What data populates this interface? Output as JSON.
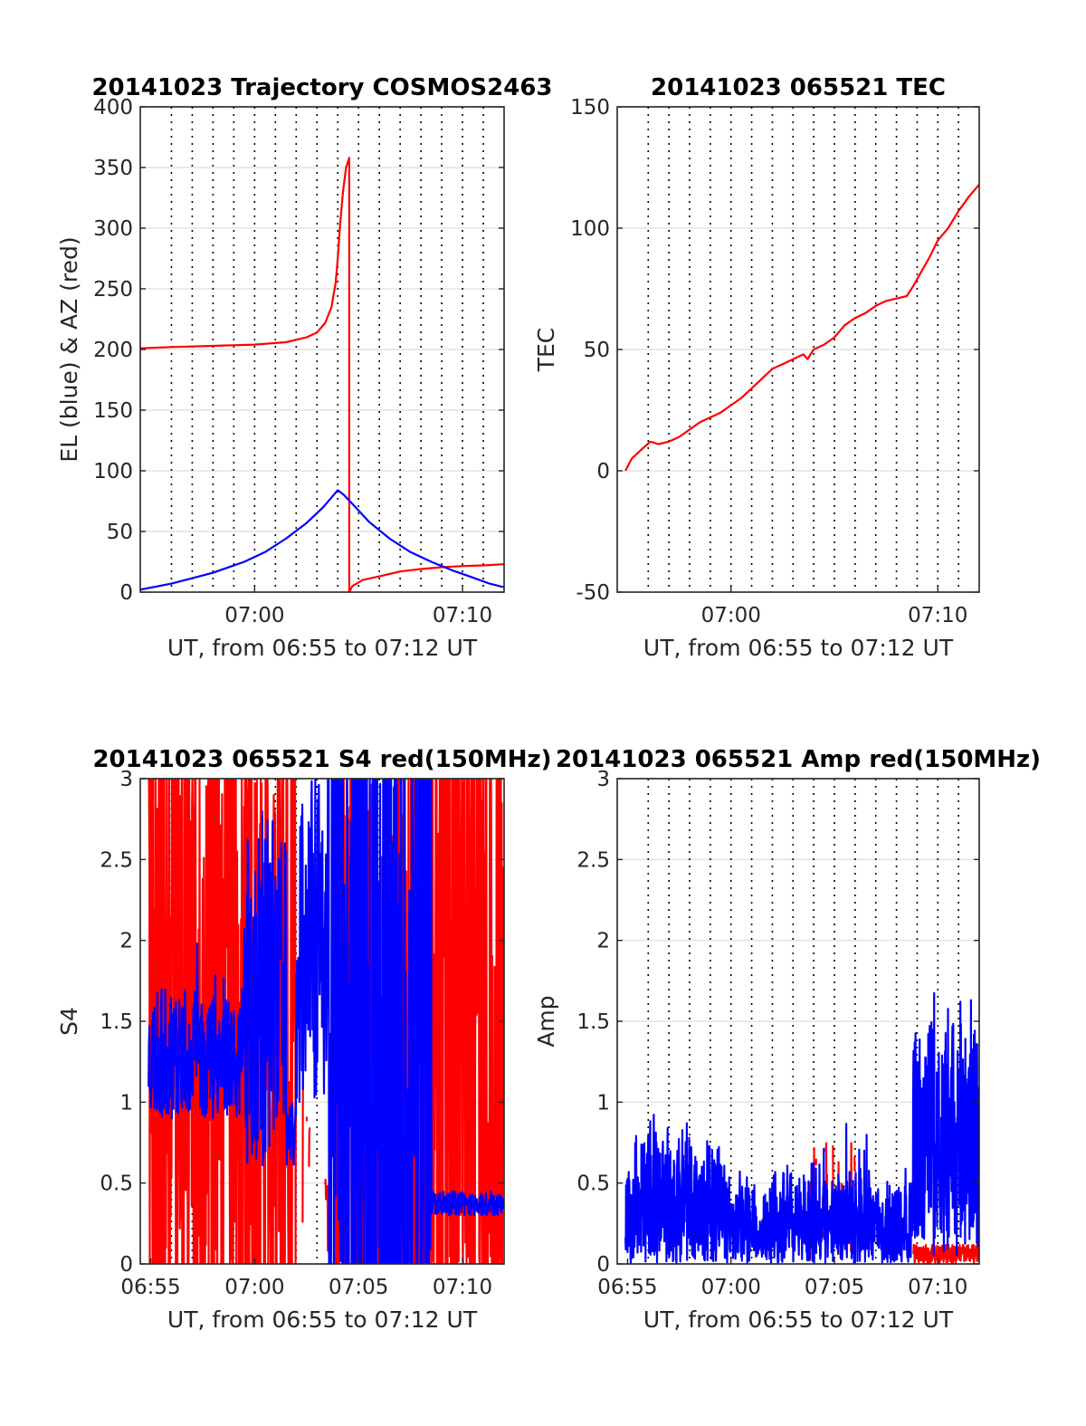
{
  "chart_data": [
    {
      "type": "line",
      "title": "20141023 Trajectory COSMOS2463",
      "xlabel": "UT, from 06:55 to 07:12 UT",
      "ylabel": "EL (blue) & AZ (red)",
      "xlim": [
        54.5,
        72
      ],
      "ylim": [
        0,
        400
      ],
      "yticks": [
        0,
        50,
        100,
        150,
        200,
        250,
        300,
        350,
        400
      ],
      "xticks": [
        {
          "value": 60,
          "label": "07:00"
        },
        {
          "value": 70,
          "label": "07:10"
        }
      ],
      "grid": true,
      "series": [
        {
          "color": "#ff0000",
          "points": [
            [
              54.5,
              201
            ],
            [
              56,
              202
            ],
            [
              58,
              203
            ],
            [
              60,
              204
            ],
            [
              61.5,
              206
            ],
            [
              62.5,
              210
            ],
            [
              63,
              214
            ],
            [
              63.4,
              222
            ],
            [
              63.7,
              235
            ],
            [
              63.9,
              255
            ],
            [
              64,
              275
            ],
            [
              64.1,
              300
            ],
            [
              64.25,
              330
            ],
            [
              64.4,
              350
            ],
            [
              64.55,
              358
            ],
            [
              64.55,
              0
            ],
            [
              64.7,
              5
            ],
            [
              65.2,
              10
            ],
            [
              66,
              13
            ],
            [
              67,
              17
            ],
            [
              68,
              19
            ],
            [
              69,
              20.5
            ],
            [
              70,
              21.5
            ],
            [
              71,
              22
            ],
            [
              72,
              23
            ]
          ]
        },
        {
          "color": "#0000ff",
          "points": [
            [
              54.5,
              2
            ],
            [
              56,
              7
            ],
            [
              58,
              16
            ],
            [
              59.5,
              25
            ],
            [
              60.5,
              33
            ],
            [
              61.5,
              44
            ],
            [
              62.5,
              57
            ],
            [
              63.3,
              70
            ],
            [
              63.8,
              80
            ],
            [
              64,
              84
            ],
            [
              64.3,
              80
            ],
            [
              64.8,
              71
            ],
            [
              65.5,
              58
            ],
            [
              66.5,
              44
            ],
            [
              67.5,
              33
            ],
            [
              68.5,
              25
            ],
            [
              69.5,
              18
            ],
            [
              70.5,
              12
            ],
            [
              71.3,
              7
            ],
            [
              72,
              4
            ]
          ]
        }
      ]
    },
    {
      "type": "line",
      "title": "20141023 065521 TEC",
      "xlabel": "UT, from 06:55 to 07:12 UT",
      "ylabel": "TEC",
      "xlim": [
        54.5,
        72
      ],
      "ylim": [
        -50,
        150
      ],
      "yticks": [
        -50,
        0,
        50,
        100,
        150
      ],
      "xticks": [
        {
          "value": 60,
          "label": "07:00"
        },
        {
          "value": 70,
          "label": "07:10"
        }
      ],
      "grid": true,
      "series": [
        {
          "color": "#ff0000",
          "points": [
            [
              54.9,
              0
            ],
            [
              55.2,
              5
            ],
            [
              55.7,
              9
            ],
            [
              56.1,
              12
            ],
            [
              56.5,
              11
            ],
            [
              57,
              12
            ],
            [
              57.5,
              14
            ],
            [
              58,
              17
            ],
            [
              58.5,
              20
            ],
            [
              59,
              22
            ],
            [
              59.5,
              24
            ],
            [
              60,
              27
            ],
            [
              60.5,
              30
            ],
            [
              61,
              34
            ],
            [
              61.5,
              38
            ],
            [
              62,
              42
            ],
            [
              62.5,
              44
            ],
            [
              63,
              46
            ],
            [
              63.5,
              48
            ],
            [
              63.7,
              46
            ],
            [
              64,
              50
            ],
            [
              64.5,
              52
            ],
            [
              65,
              55
            ],
            [
              65.5,
              60
            ],
            [
              66,
              63
            ],
            [
              66.5,
              65
            ],
            [
              67,
              68
            ],
            [
              67.5,
              70
            ],
            [
              68,
              71
            ],
            [
              68.5,
              72
            ],
            [
              68.8,
              76
            ],
            [
              69.2,
              82
            ],
            [
              69.6,
              88
            ],
            [
              70,
              95
            ],
            [
              70.5,
              100
            ],
            [
              71,
              107
            ],
            [
              71.5,
              113
            ],
            [
              72,
              118
            ]
          ]
        }
      ]
    },
    {
      "type": "line",
      "title": "20141023 065521 S4 red(150MHz)",
      "xlabel": "UT, from 06:55 to 07:12 UT",
      "ylabel": "S4",
      "xlim": [
        54.5,
        72
      ],
      "ylim": [
        0,
        3
      ],
      "yticks": [
        0,
        0.5,
        1,
        1.5,
        2,
        2.5,
        3
      ],
      "xticks": [
        {
          "value": 55,
          "label": "06:55"
        },
        {
          "value": 60,
          "label": "07:00"
        },
        {
          "value": 65,
          "label": "07:05"
        },
        {
          "value": 70,
          "label": "07:10"
        }
      ],
      "grid": true,
      "series": [
        {
          "color": "#ff0000",
          "noise": "s4red"
        },
        {
          "color": "#0000ff",
          "noise": "s4blue"
        }
      ]
    },
    {
      "type": "line",
      "title": "20141023 065521 Amp red(150MHz)",
      "xlabel": "UT, from 06:55 to 07:12 UT",
      "ylabel": "Amp",
      "xlim": [
        54.5,
        72
      ],
      "ylim": [
        0,
        3
      ],
      "yticks": [
        0,
        0.5,
        1,
        1.5,
        2,
        2.5,
        3
      ],
      "xticks": [
        {
          "value": 55,
          "label": "06:55"
        },
        {
          "value": 60,
          "label": "07:00"
        },
        {
          "value": 65,
          "label": "07:05"
        },
        {
          "value": 70,
          "label": "07:10"
        }
      ],
      "grid": true,
      "series": [
        {
          "color": "#ff0000",
          "noise": "ampred"
        },
        {
          "color": "#0000ff",
          "noise": "ampblue"
        }
      ]
    }
  ]
}
